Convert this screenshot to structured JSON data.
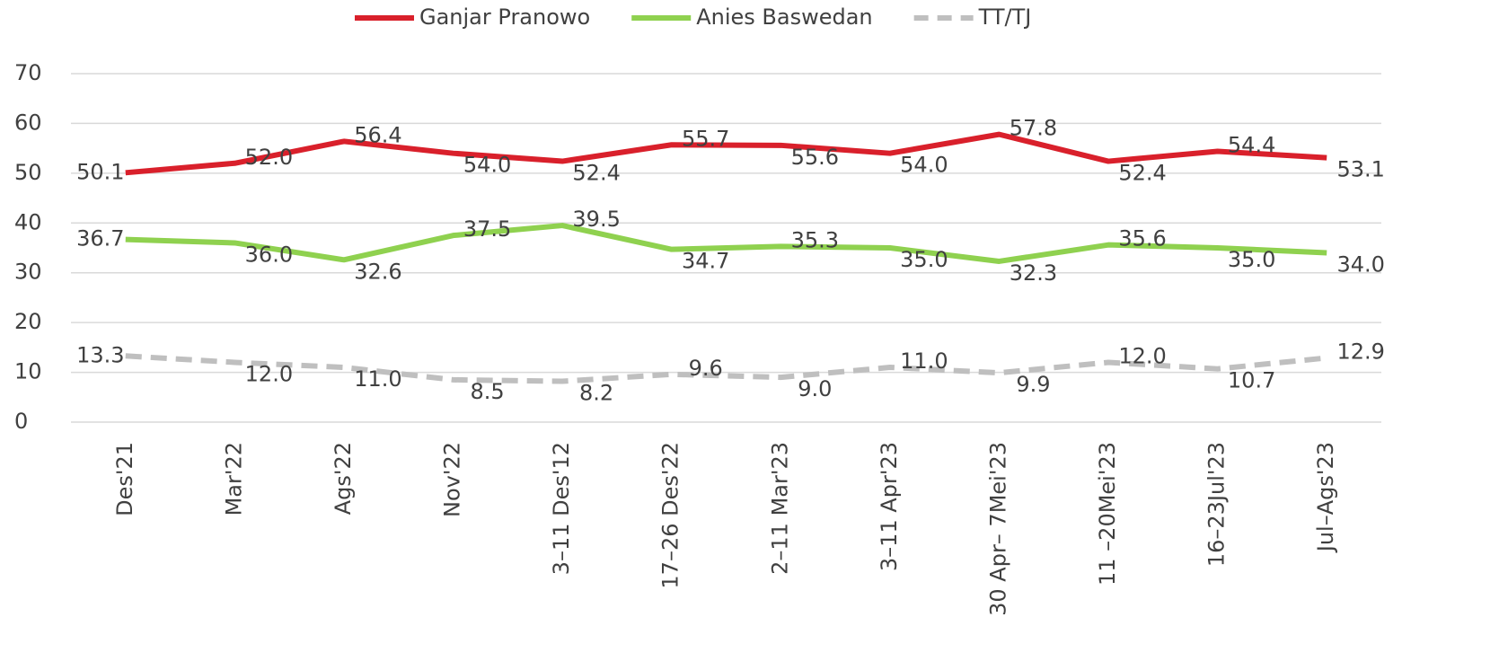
{
  "chart_data": {
    "type": "line",
    "categories": [
      "Des'21",
      "Mar'22",
      "Ags'22",
      "Nov'22",
      "3–11 Des'12",
      "17–26 Des'22",
      "2–11 Mar'23",
      "3–11 Apr'23",
      "30 Apr– 7Mei'23",
      "11 –20Mei'23",
      "16–23Jul'23",
      "Jul–Ags'23"
    ],
    "series": [
      {
        "name": "Ganjar Pranowo",
        "color": "#d9202b",
        "style": "solid",
        "values": [
          50.1,
          52.0,
          56.4,
          54.0,
          52.4,
          55.7,
          55.6,
          54.0,
          57.8,
          52.4,
          54.4,
          53.1
        ],
        "value_labels": [
          "50.1",
          "52.0",
          "56.4",
          "54.0",
          "52.4",
          "55.7",
          "55.6",
          "54.0",
          "57.8",
          "52.4",
          "54.4",
          "53.1"
        ]
      },
      {
        "name": "Anies Baswedan",
        "color": "#8fd14f",
        "style": "solid",
        "values": [
          36.7,
          36.0,
          32.6,
          37.5,
          39.5,
          34.7,
          35.3,
          35.0,
          32.3,
          35.6,
          35.0,
          34.0
        ],
        "value_labels": [
          "36.7",
          "36.0",
          "32.6",
          "37.5",
          "39.5",
          "34.7",
          "35.3",
          "35.0",
          "32.3",
          "35.6",
          "35.0",
          "34.0"
        ]
      },
      {
        "name": "TT/TJ",
        "color": "#bfbfbf",
        "style": "dashed",
        "values": [
          13.3,
          12.0,
          11.0,
          8.5,
          8.2,
          9.6,
          9.0,
          11.0,
          9.9,
          12.0,
          10.7,
          12.9
        ],
        "value_labels": [
          "13.3",
          "12.0",
          "11.0",
          "8.5",
          "8.2",
          "9.6",
          "9.0",
          "11.0",
          "9.9",
          "12.0",
          "10.7",
          "12.9"
        ]
      }
    ],
    "ylim": [
      0,
      70
    ],
    "yticks": [
      0,
      10,
      20,
      30,
      40,
      50,
      60,
      70
    ],
    "grid": true,
    "legend": "top"
  }
}
